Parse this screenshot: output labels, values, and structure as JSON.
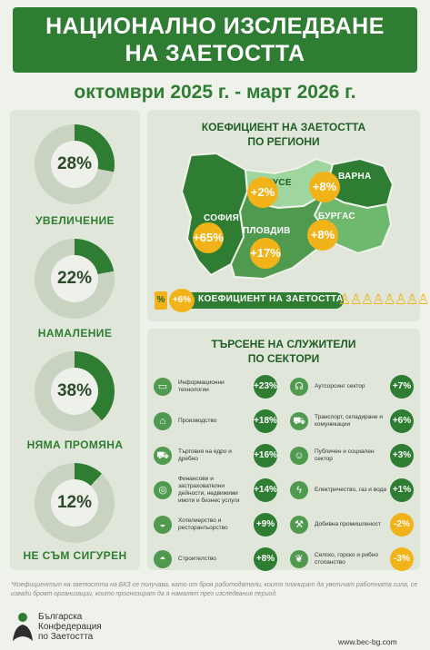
{
  "header": {
    "title_line1": "НАЦИОНАЛНО ИЗСЛЕДВАНЕ",
    "title_line2": "НА ЗАЕТОСТТА",
    "period": "октомври 2025 г. - март 2026 г."
  },
  "expectations": [
    {
      "value": "28%",
      "label": "УВЕЛИЧЕНИЕ",
      "fraction": 0.28
    },
    {
      "value": "22%",
      "label": "НАМАЛЕНИЕ",
      "fraction": 0.22
    },
    {
      "value": "38%",
      "label": "НЯМА ПРОМЯНА",
      "fraction": 0.38
    },
    {
      "value": "12%",
      "label": "НЕ СЪМ СИГУРЕН",
      "fraction": 0.12
    }
  ],
  "regions": {
    "title_line1": "КОЕФИЦИЕНТ НА ЗАЕТОСТТА",
    "title_line2": "ПО РЕГИОНИ",
    "items": [
      {
        "name": "РУСЕ",
        "value": "+2%"
      },
      {
        "name": "ВАРНА",
        "value": "+8%"
      },
      {
        "name": "СОФИЯ",
        "value": "+65%"
      },
      {
        "name": "ПЛОВДИВ",
        "value": "+17%"
      },
      {
        "name": "БУРГАС",
        "value": "+8%"
      }
    ],
    "coef_symbol": "%",
    "coef_value": "+6%",
    "coef_label": "КОЕФИЦИЕНТ НА ЗАЕТОСТТА"
  },
  "sectors": {
    "title_line1": "ТЪРСЕНЕ НА СЛУЖИТЕЛИ",
    "title_line2": "ПО СЕКТОРИ",
    "left": [
      {
        "label": "Информационни технологии",
        "value": "+23%",
        "icon": "computer-icon"
      },
      {
        "label": "Производство",
        "value": "+18%",
        "icon": "factory-icon"
      },
      {
        "label": "Търговия на едро и дребно",
        "value": "+16%",
        "icon": "cart-icon"
      },
      {
        "label": "Финансови и застрахователни дейности, недвижими имоти и бизнес услуги",
        "value": "+14%",
        "icon": "coins-icon"
      },
      {
        "label": "Хотелиерство и ресторантьорство",
        "value": "+9%",
        "icon": "cloche-icon"
      },
      {
        "label": "Строителство",
        "value": "+8%",
        "icon": "helmet-icon"
      }
    ],
    "right": [
      {
        "label": "Аутсорсинг сектор",
        "value": "+7%",
        "icon": "headset-icon"
      },
      {
        "label": "Транспорт, складиране и комуникации",
        "value": "+6%",
        "icon": "truck-icon"
      },
      {
        "label": "Публичен и социален сектор",
        "value": "+3%",
        "icon": "people-icon"
      },
      {
        "label": "Електричество, газ и вода",
        "value": "+1%",
        "icon": "lightning-icon"
      },
      {
        "label": "Добивна промишленост",
        "value": "-2%",
        "icon": "pickaxe-icon"
      },
      {
        "label": "Селско, горско и рибно стопанство",
        "value": "-3%",
        "icon": "leaf-icon"
      }
    ]
  },
  "footnote": "*Коефициентът на заетостта на БКЗ се получава, като от броя работодатели, които планират да увеличат работната сила, се извади броят организации, които прогнозират да я намалят през изследвания период.",
  "logo": {
    "line1": "Българска",
    "line2": "Конфедерация",
    "line3": "по Заетостта"
  },
  "url": "www.bec-bg.com",
  "colors": {
    "dark_green": "#2e7d32",
    "mid_green": "#4f9a4f",
    "light_green": "#8fce8f",
    "orange": "#f2b31a",
    "panel": "#e0e7da"
  }
}
